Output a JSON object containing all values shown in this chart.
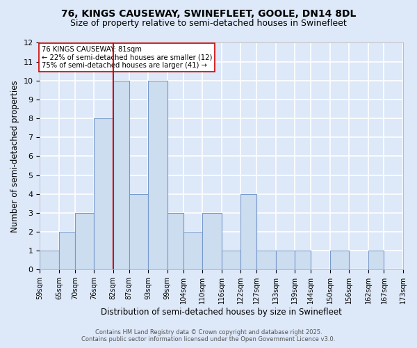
{
  "title": "76, KINGS CAUSEWAY, SWINEFLEET, GOOLE, DN14 8DL",
  "subtitle": "Size of property relative to semi-detached houses in Swinefleet",
  "xlabel": "Distribution of semi-detached houses by size in Swinefleet",
  "ylabel": "Number of semi-detached properties",
  "bin_edges": [
    59,
    65,
    70,
    76,
    82,
    87,
    93,
    99,
    104,
    110,
    116,
    122,
    127,
    133,
    139,
    144,
    150,
    156,
    162,
    167,
    173
  ],
  "counts": [
    1,
    2,
    3,
    8,
    10,
    4,
    10,
    3,
    2,
    3,
    1,
    4,
    1,
    1,
    1,
    0,
    1,
    0,
    1,
    0
  ],
  "bar_color": "#ccddf0",
  "bar_edge_color": "#7799cc",
  "property_line_x": 82,
  "property_line_color": "#cc0000",
  "annotation_text": "76 KINGS CAUSEWAY: 81sqm\n← 22% of semi-detached houses are smaller (12)\n75% of semi-detached houses are larger (41) →",
  "annotation_box_color": "#ffffff",
  "annotation_box_edge": "#cc0000",
  "ylim": [
    0,
    12
  ],
  "yticks": [
    0,
    1,
    2,
    3,
    4,
    5,
    6,
    7,
    8,
    9,
    10,
    11,
    12
  ],
  "background_color": "#dde8f8",
  "plot_bg_color": "#dde8f8",
  "grid_color": "#ffffff",
  "footer_line1": "Contains HM Land Registry data © Crown copyright and database right 2025.",
  "footer_line2": "Contains public sector information licensed under the Open Government Licence v3.0.",
  "title_fontsize": 10,
  "subtitle_fontsize": 9,
  "tick_label_fontsize": 7,
  "axis_label_fontsize": 8.5
}
